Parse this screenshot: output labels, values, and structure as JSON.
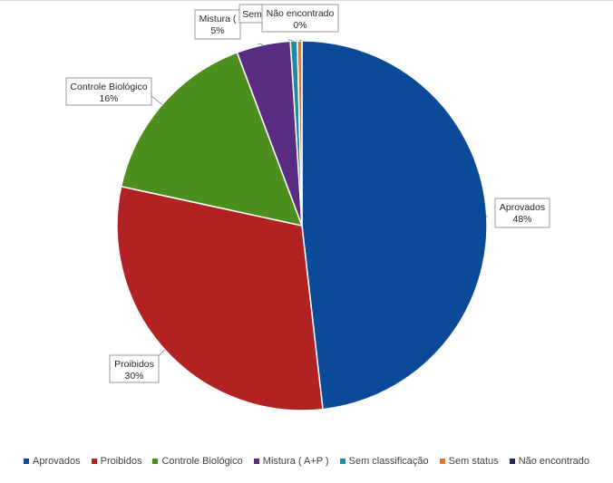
{
  "chart_data": {
    "type": "pie",
    "title": "",
    "categories": [
      "Aprovados",
      "Proibidos",
      "Controle Biológico",
      "Mistura ( A+P )",
      "Sem classificação",
      "Sem status",
      "Não encontrado"
    ],
    "values": [
      48.2,
      30.2,
      15.9,
      4.7,
      0.6,
      0.4,
      0.0
    ],
    "value_labels": [
      "48%",
      "30%",
      "16%",
      "5%",
      "",
      "",
      "0%"
    ],
    "data_labels": [
      {
        "category": "Aprovados",
        "name": "Aprovados",
        "pct": "48%"
      },
      {
        "category": "Proibidos",
        "name": "Proibidos",
        "pct": "30%"
      },
      {
        "category": "Controle Biológico",
        "name": "Controle Biológico",
        "pct": "16%"
      },
      {
        "category": "Mistura ( A+P )",
        "name": "Mistura (",
        "pct": "5%"
      },
      {
        "category": "Sem classificação",
        "name": "Sem",
        "pct": ""
      },
      {
        "category": "Não encontrado",
        "name": "Não encontrado",
        "pct": "0%"
      }
    ],
    "colors": [
      "#0b4a99",
      "#b22222",
      "#4d8f1f",
      "#5a2d82",
      "#1f8aa6",
      "#e8762b",
      "#1b2a4a"
    ],
    "legend_position": "bottom"
  }
}
